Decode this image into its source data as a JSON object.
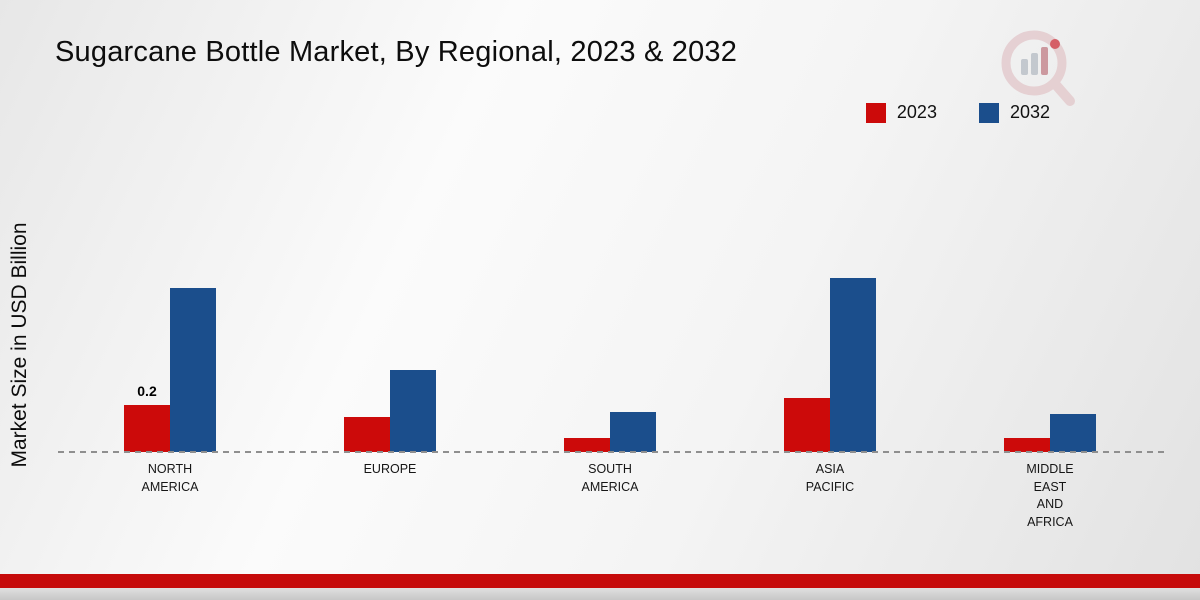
{
  "header": {
    "title": "Sugarcane Bottle Market, By Regional, 2023 & 2032"
  },
  "colors": {
    "series_2023": "#cc0a0a",
    "series_2032": "#1b4e8c",
    "baseline": "#8f8f8f",
    "footer_band": "#c60b0b"
  },
  "chart_data": {
    "type": "bar",
    "title": "Sugarcane Bottle Market, By Regional, 2023 & 2032",
    "xlabel": "",
    "ylabel": "Market Size in USD Billion",
    "categories": [
      "North America",
      "Europe",
      "South America",
      "Asia Pacific",
      "Middle East and Africa"
    ],
    "category_labels": [
      [
        "NORTH",
        "AMERICA"
      ],
      [
        "EUROPE"
      ],
      [
        "SOUTH",
        "AMERICA"
      ],
      [
        "ASIA",
        "PACIFIC"
      ],
      [
        "MIDDLE",
        "EAST",
        "AND",
        "AFRICA"
      ]
    ],
    "series": [
      {
        "name": "2023",
        "color": "#cc0a0a",
        "values": [
          0.2,
          0.15,
          0.06,
          0.23,
          0.06
        ]
      },
      {
        "name": "2032",
        "color": "#1b4e8c",
        "values": [
          0.7,
          0.35,
          0.17,
          0.74,
          0.16
        ]
      }
    ],
    "data_label": {
      "series_index": 0,
      "category_index": 0,
      "text": "0.2"
    },
    "ylim": [
      0,
      0.8
    ],
    "grid": false,
    "legend_position": "top-right"
  }
}
